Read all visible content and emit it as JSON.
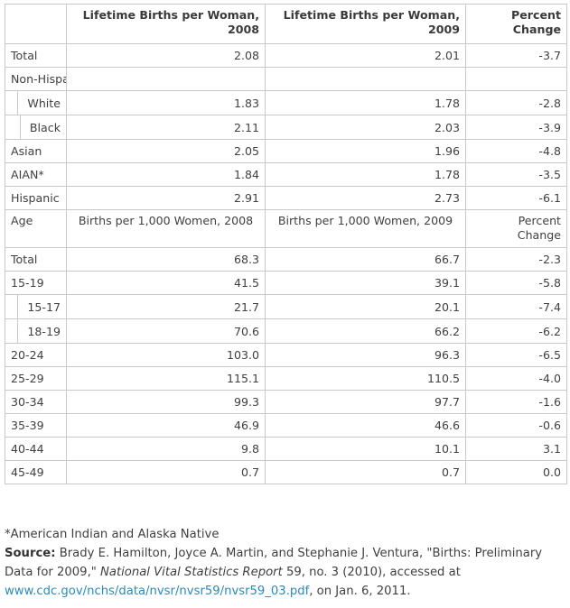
{
  "header": {
    "col1": "",
    "col2": "Lifetime Births per Woman, 2008",
    "col3": "Lifetime Births per Woman, 2009",
    "col4": "Percent Change"
  },
  "rows1": [
    {
      "label": "Total",
      "v2008": "2.08",
      "v2009": "2.01",
      "change": "-3.7",
      "indent": false
    },
    {
      "label": "Non-Hispanic",
      "v2008": "",
      "v2009": "",
      "change": "",
      "indent": false
    },
    {
      "label": "White",
      "v2008": "1.83",
      "v2009": "1.78",
      "change": "-2.8",
      "indent": true
    },
    {
      "label": "Black",
      "v2008": "2.11",
      "v2009": "2.03",
      "change": "-3.9",
      "indent": true
    },
    {
      "label": "Asian",
      "v2008": "2.05",
      "v2009": "1.96",
      "change": "-4.8",
      "indent": false
    },
    {
      "label": "AIAN*",
      "v2008": "1.84",
      "v2009": "1.78",
      "change": "-3.5",
      "indent": false
    },
    {
      "label": "Hispanic",
      "v2008": "2.91",
      "v2009": "2.73",
      "change": "-6.1",
      "indent": false
    }
  ],
  "subheader": {
    "col1": "Age",
    "col2": "Births per 1,000 Women, 2008",
    "col3": "Births per 1,000 Women, 2009",
    "col4": "Percent Change"
  },
  "rows2": [
    {
      "label": "Total",
      "v2008": "68.3",
      "v2009": "66.7",
      "change": "-2.3",
      "indent": false
    },
    {
      "label": "15-19",
      "v2008": "41.5",
      "v2009": "39.1",
      "change": "-5.8",
      "indent": false
    },
    {
      "label": "15-17",
      "v2008": "21.7",
      "v2009": "20.1",
      "change": "-7.4",
      "indent": true
    },
    {
      "label": "18-19",
      "v2008": "70.6",
      "v2009": "66.2",
      "change": "-6.2",
      "indent": true
    },
    {
      "label": "20-24",
      "v2008": "103.0",
      "v2009": "96.3",
      "change": "-6.5",
      "indent": false
    },
    {
      "label": "25-29",
      "v2008": "115.1",
      "v2009": "110.5",
      "change": "-4.0",
      "indent": false
    },
    {
      "label": "30-34",
      "v2008": "99.3",
      "v2009": "97.7",
      "change": "-1.6",
      "indent": false
    },
    {
      "label": "35-39",
      "v2008": "46.9",
      "v2009": "46.6",
      "change": "-0.6",
      "indent": false
    },
    {
      "label": "40-44",
      "v2008": "9.8",
      "v2009": "10.1",
      "change": "3.1",
      "indent": false
    },
    {
      "label": "45-49",
      "v2008": "0.7",
      "v2009": "0.7",
      "change": "0.0",
      "indent": false
    }
  ],
  "footnote": {
    "asterisk": "*American Indian and Alaska Native",
    "source_label": "Source:",
    "source_text_1": " Brady E. Hamilton, Joyce A. Martin, and Stephanie J. Ventura, \"Births: Preliminary Data for 2009,\" ",
    "source_journal": "National Vital Statistics Report",
    "source_text_2": " 59, no. 3 (2010), accessed at ",
    "source_link": "www.cdc.gov/nchs/data/nvsr/nvsr59/nvsr59_03.pdf",
    "source_text_3": ", on Jan. 6, 2011."
  }
}
